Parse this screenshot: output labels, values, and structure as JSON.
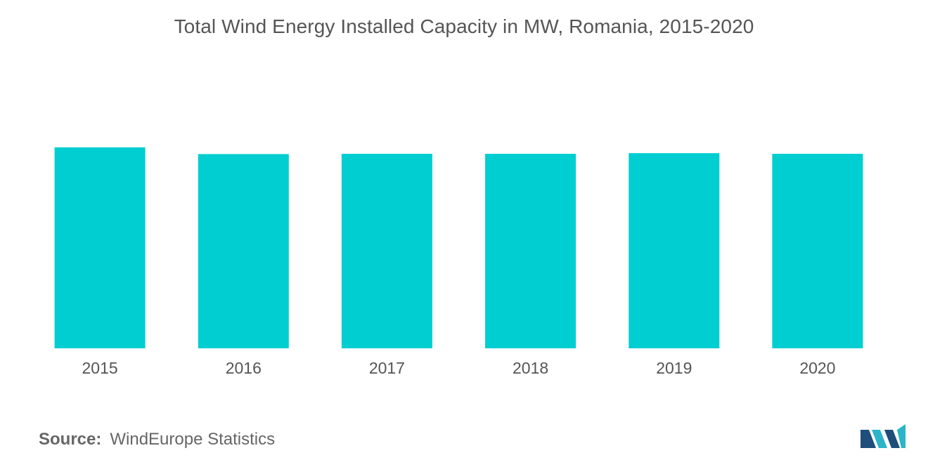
{
  "chart_data": {
    "type": "bar",
    "title": "Total Wind Energy Installed Capacity in MW, Romania, 2015-2020",
    "categories": [
      "2015",
      "2016",
      "2017",
      "2018",
      "2019",
      "2020"
    ],
    "values": [
      3130,
      3025,
      3030,
      3030,
      3040,
      3030
    ],
    "xlabel": "",
    "ylabel": "",
    "ylim": [
      0,
      3500
    ],
    "grid": false,
    "legend": "none",
    "bar_color": "#00CED1"
  },
  "source": {
    "label": "Source:",
    "text": "WindEurope Statistics"
  },
  "logo": {
    "icon": "mordor-intelligence-logo-icon",
    "colors": [
      "#1E4E79",
      "#2BB5C8"
    ]
  }
}
